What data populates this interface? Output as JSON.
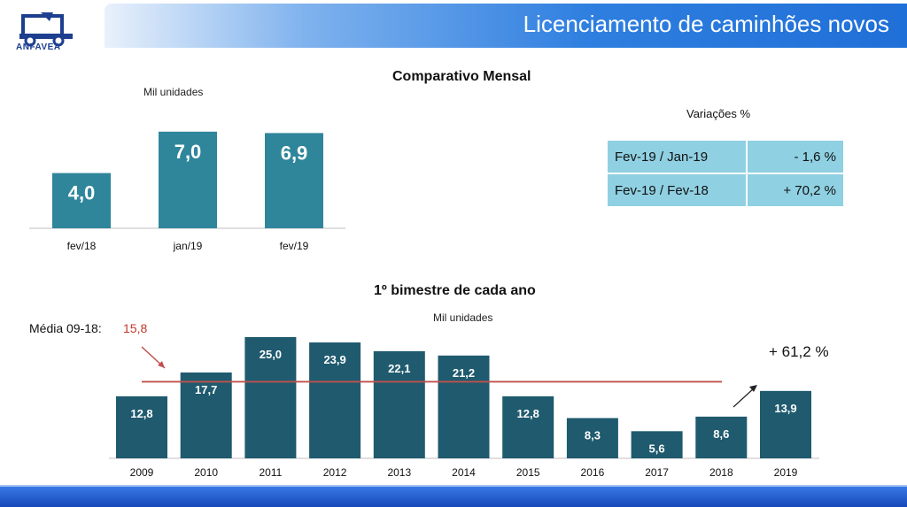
{
  "header": {
    "title": "Licenciamento de caminhões novos",
    "logo_text": "ANFAVEA"
  },
  "monthly": {
    "title": "Comparativo Mensal",
    "unit": "Mil unidades"
  },
  "variations": {
    "title": "Variações %",
    "rows": [
      {
        "label": "Fev-19 / Jan-19",
        "value": "- 1,6 %"
      },
      {
        "label": "Fev-19 / Fev-18",
        "value": "+ 70,2 %"
      }
    ]
  },
  "bimester": {
    "title": "1º bimestre de cada ano",
    "unit": "Mil unidades",
    "average_label": "Média 09-18:",
    "average_value": "15,8",
    "growth_label": "+ 61,2 %"
  },
  "chart_data": [
    {
      "type": "bar",
      "title": "Comparativo Mensal",
      "ylabel": "Mil unidades",
      "categories": [
        "fev/18",
        "jan/19",
        "fev/19"
      ],
      "values": [
        4.0,
        7.0,
        6.9
      ],
      "value_labels": [
        "4,0",
        "7,0",
        "6,9"
      ],
      "color": "#2f869b"
    },
    {
      "type": "bar",
      "title": "1º bimestre de cada ano",
      "ylabel": "Mil unidades",
      "categories": [
        "2009",
        "2010",
        "2011",
        "2012",
        "2013",
        "2014",
        "2015",
        "2016",
        "2017",
        "2018",
        "2019"
      ],
      "values": [
        12.8,
        17.7,
        25.0,
        23.9,
        22.1,
        21.2,
        12.8,
        8.3,
        5.6,
        8.6,
        13.9
      ],
      "value_labels": [
        "12,8",
        "17,7",
        "25,0",
        "23,9",
        "22,1",
        "21,2",
        "12,8",
        "8,3",
        "5,6",
        "8,6",
        "13,9"
      ],
      "reference_line": 15.8,
      "color": "#1f5a6e",
      "line_color": "#c0504d"
    }
  ]
}
